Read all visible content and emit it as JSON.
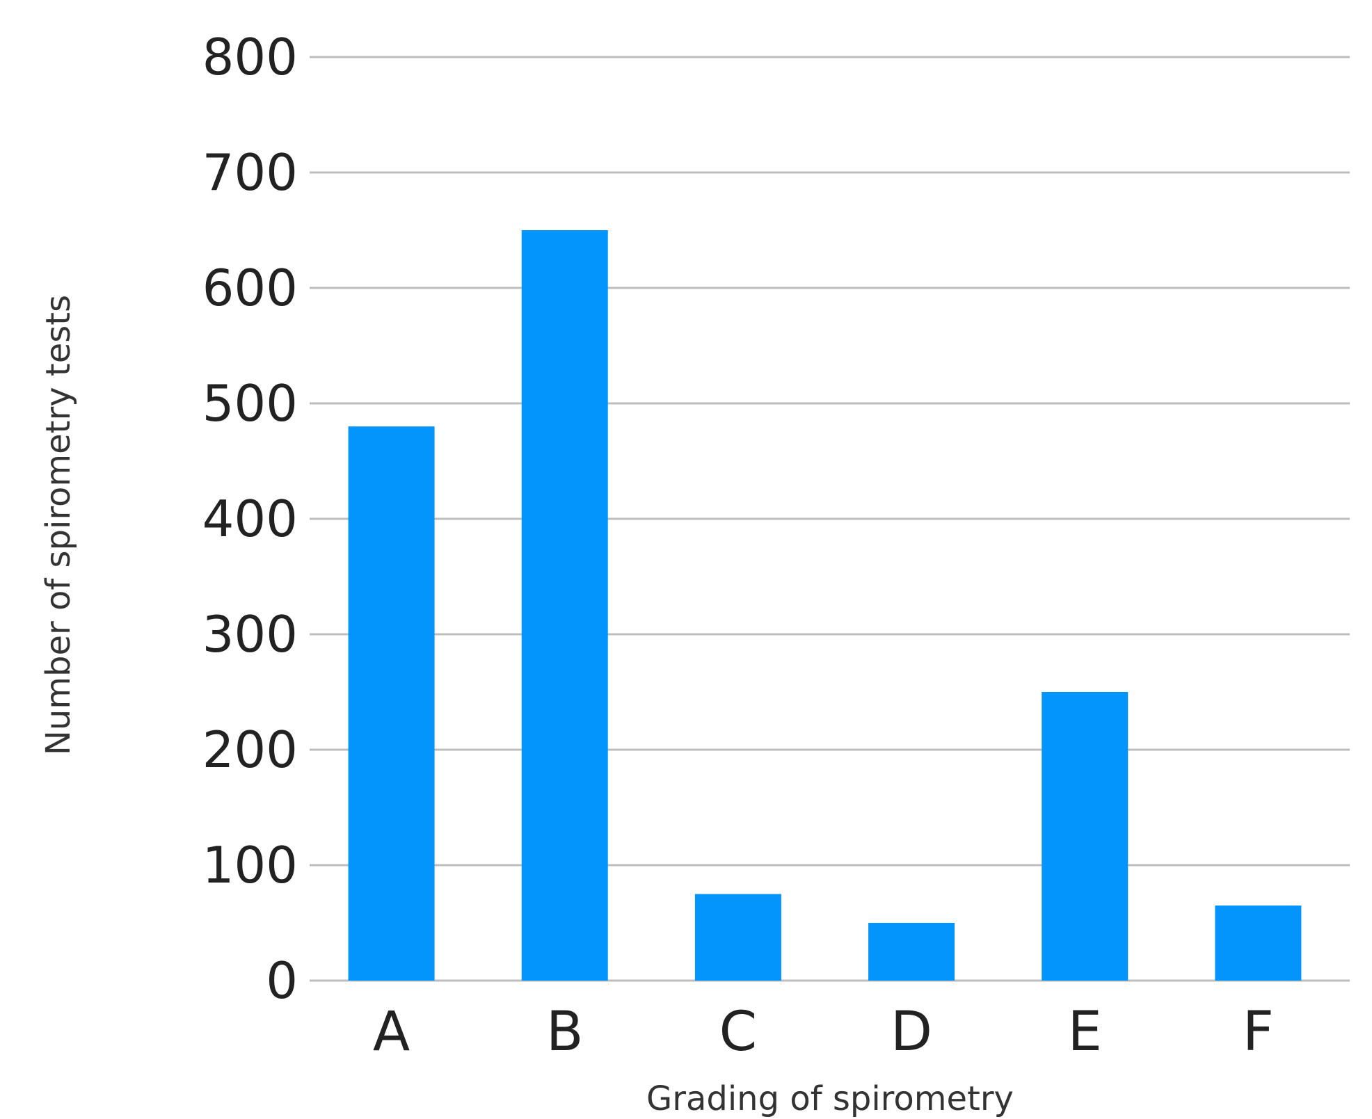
{
  "chart_data": {
    "type": "bar",
    "categories": [
      "A",
      "B",
      "C",
      "D",
      "E",
      "F"
    ],
    "values": [
      480,
      650,
      75,
      50,
      250,
      65
    ],
    "xlabel": "Grading of spirometry",
    "ylabel": "Number of spirometry tests",
    "ylim": [
      0,
      800
    ],
    "yticks": [
      0,
      100,
      200,
      300,
      400,
      500,
      600,
      700,
      800
    ],
    "grid": true,
    "bar_color": "#0394fc"
  }
}
